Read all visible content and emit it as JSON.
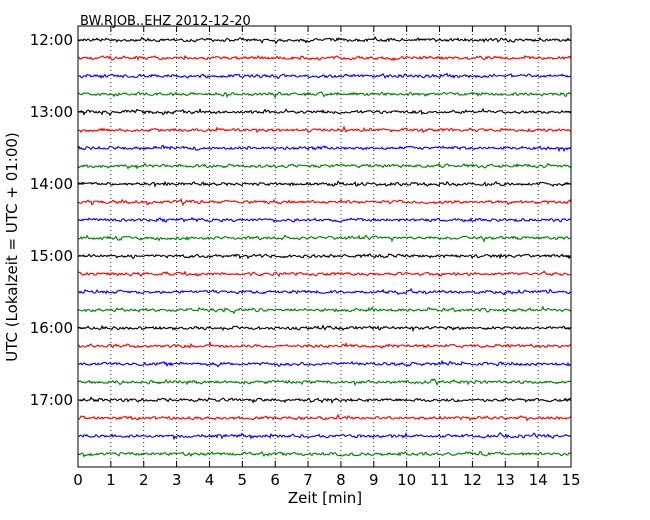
{
  "chart_data": {
    "type": "line",
    "title": "BW.RJOB..EHZ 2012-12-20",
    "xlabel": "Zeit  [min]",
    "ylabel": "UTC (Lokalzeit = UTC + 01:00)",
    "xlim": [
      0,
      15
    ],
    "x_ticks": [
      "0",
      "1",
      "2",
      "3",
      "4",
      "5",
      "6",
      "7",
      "8",
      "9",
      "10",
      "11",
      "12",
      "13",
      "14",
      "15"
    ],
    "y_tick_labels": [
      "12:00",
      "13:00",
      "14:00",
      "15:00",
      "16:00",
      "17:00"
    ],
    "y_tick_trace_index": [
      0,
      4,
      8,
      12,
      16,
      20
    ],
    "trace_start_times": [
      "12:00",
      "12:15",
      "12:30",
      "12:45",
      "13:00",
      "13:15",
      "13:30",
      "13:45",
      "14:00",
      "14:15",
      "14:30",
      "14:45",
      "15:00",
      "15:15",
      "15:30",
      "15:45",
      "16:00",
      "16:15",
      "16:30",
      "16:45",
      "17:00",
      "17:15",
      "17:30",
      "17:45"
    ],
    "trace_colors": [
      "#000000",
      "#ff0000",
      "#0000ff",
      "#008000"
    ],
    "vertical_grid": "dotted"
  }
}
